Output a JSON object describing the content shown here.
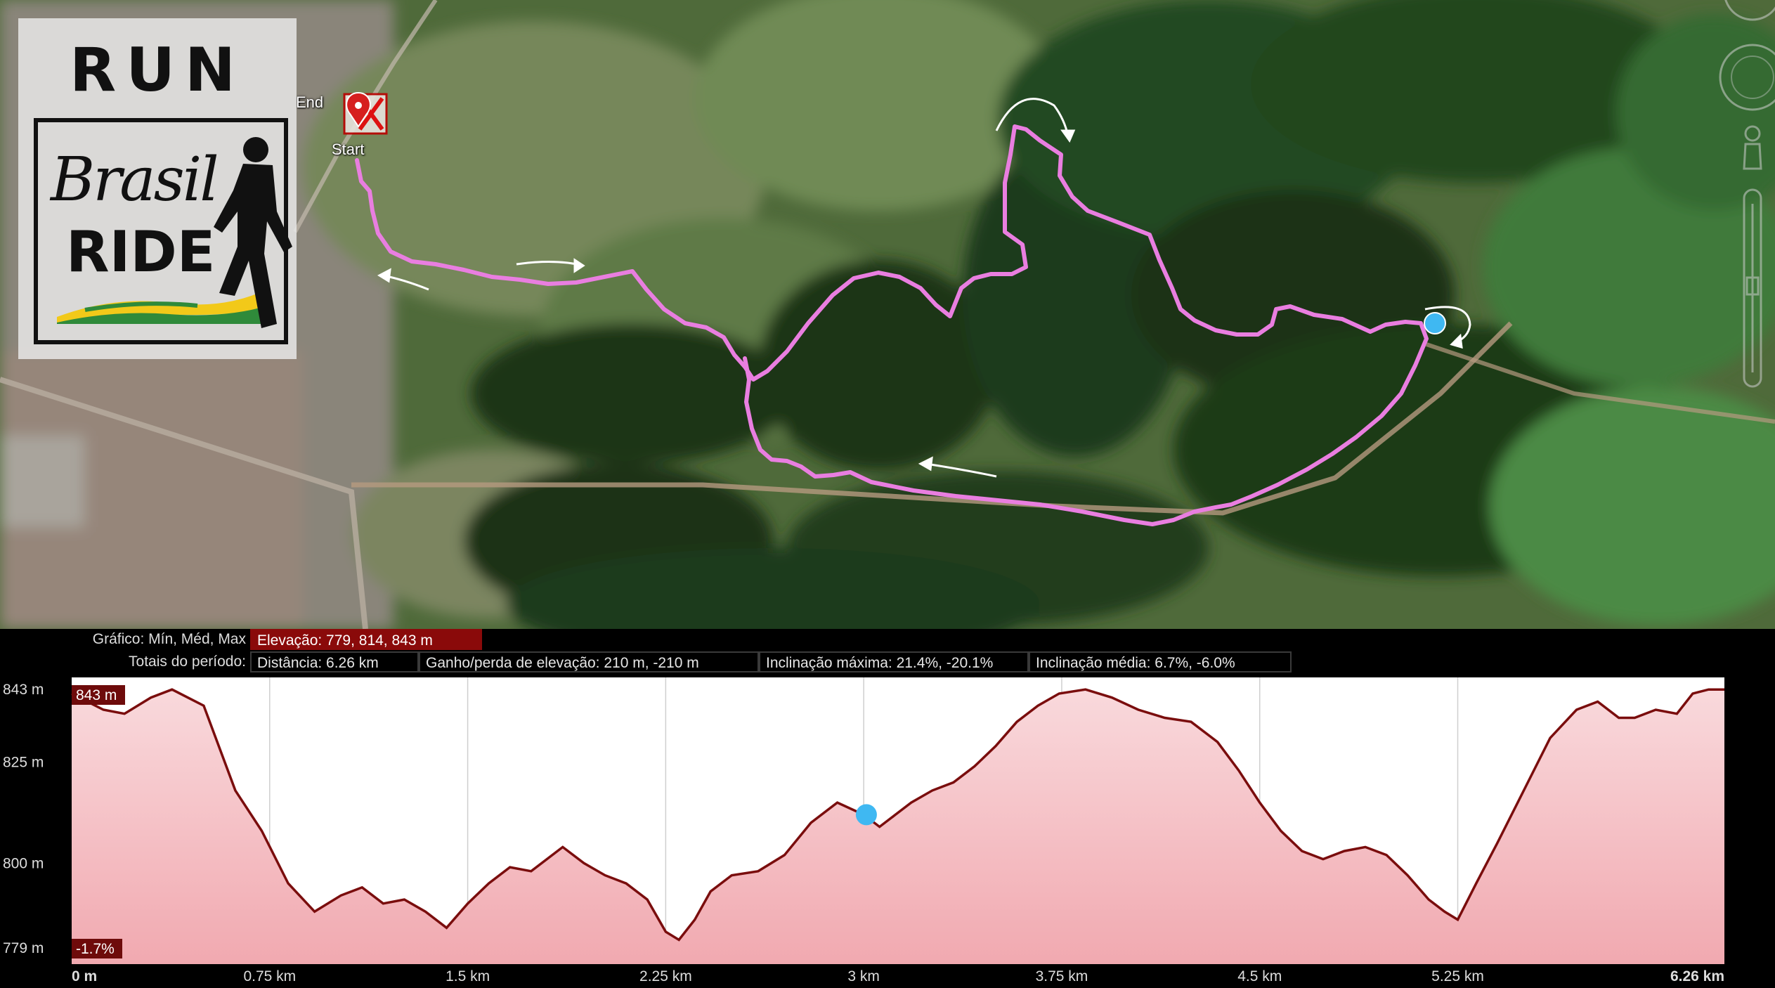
{
  "map": {
    "end_label": "End",
    "start_label": "Start",
    "colors": {
      "route": "#e97ee0",
      "current_marker": "#3fb8f2",
      "arrow": "#ffffff"
    }
  },
  "logo": {
    "run": "RUN",
    "brasil": "Brasil",
    "ride": "RIDE"
  },
  "summary": {
    "graph_label": "Gráfico: Mín, Méd, Max",
    "elevation": "Elevação: 779, 814, 843 m",
    "totals_label": "Totais do período:",
    "distance": "Distância: 6.26 km",
    "gain_loss": "Ganho/perda de elevação: 210 m, -210 m",
    "max_grade": "Inclinação máxima: 21.4%, -20.1%",
    "avg_grade": "Inclinação média: 6.7%, -6.0%"
  },
  "chart_data": {
    "type": "area",
    "x_unit": "km",
    "y_unit": "m",
    "xlim": [
      0,
      6.26
    ],
    "ylim": [
      775,
      846
    ],
    "y_ticks": [
      "843 m",
      "825 m",
      "800 m",
      "779 m"
    ],
    "y_tick_values": [
      843,
      825,
      800,
      779
    ],
    "x_ticks": [
      "0 m",
      "0.75 km",
      "1.5 km",
      "2.25 km",
      "3 km",
      "3.75 km",
      "4.5 km",
      "5.25 km",
      "6.26 km"
    ],
    "x_tick_values": [
      0,
      0.75,
      1.5,
      2.25,
      3,
      3.75,
      4.5,
      5.25,
      6.26
    ],
    "max_badge": "843 m",
    "grade_badge": "-1.7%",
    "current_position_km": 3.01,
    "current_position_m": 812,
    "colors": {
      "line": "#7a0d0d",
      "fill_top": "#f9d9dc",
      "fill_bottom": "#f1a9b0",
      "marker": "#3fb8f2"
    },
    "series": [
      {
        "x": [
          0,
          0.06,
          0.12,
          0.2,
          0.3,
          0.38,
          0.5,
          0.62,
          0.72,
          0.82,
          0.92,
          1.02,
          1.1,
          1.18,
          1.26,
          1.34,
          1.42,
          1.5,
          1.58,
          1.66,
          1.74,
          1.8,
          1.86,
          1.94,
          2.02,
          2.1,
          2.18,
          2.25,
          2.3,
          2.36,
          2.42,
          2.5,
          2.6,
          2.7,
          2.8,
          2.9,
          3.0,
          3.06,
          3.12,
          3.18,
          3.26,
          3.34,
          3.42,
          3.5,
          3.58,
          3.66,
          3.74,
          3.84,
          3.94,
          4.04,
          4.14,
          4.24,
          4.34,
          4.42,
          4.5,
          4.58,
          4.66,
          4.74,
          4.82,
          4.9,
          4.98,
          5.06,
          5.14,
          5.2,
          5.25,
          5.32,
          5.4,
          5.5,
          5.6,
          5.7,
          5.78,
          5.86,
          5.92,
          6.0,
          6.08,
          6.14,
          6.2,
          6.26
        ],
        "y": [
          842,
          840,
          838,
          837,
          841,
          843,
          839,
          818,
          808,
          795,
          788,
          792,
          794,
          790,
          791,
          788,
          784,
          790,
          795,
          799,
          798,
          801,
          804,
          800,
          797,
          795,
          791,
          783,
          781,
          786,
          793,
          797,
          798,
          802,
          810,
          815,
          812,
          809,
          812,
          815,
          818,
          820,
          824,
          829,
          835,
          839,
          842,
          843,
          841,
          838,
          836,
          835,
          830,
          823,
          815,
          808,
          803,
          801,
          803,
          804,
          802,
          797,
          791,
          788,
          786,
          795,
          805,
          818,
          831,
          838,
          840,
          836,
          836,
          838,
          837,
          842,
          843,
          843
        ]
      }
    ]
  }
}
